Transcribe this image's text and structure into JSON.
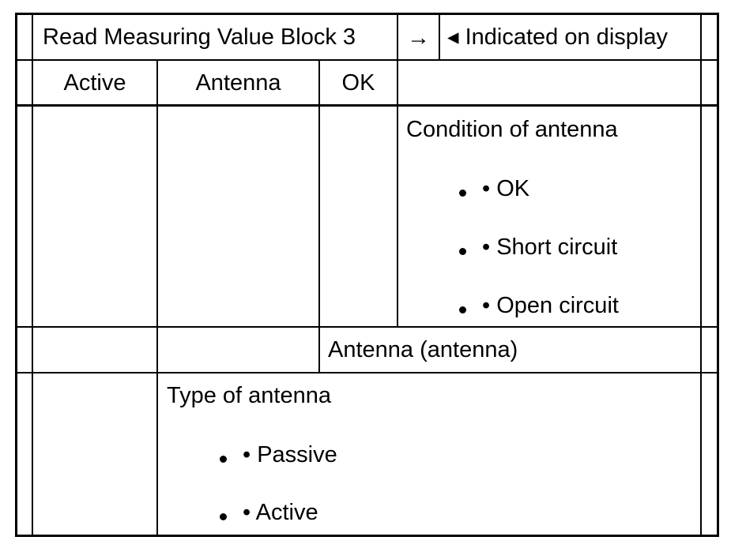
{
  "table": {
    "header": {
      "title": "Read Measuring Value Block 3",
      "arrow": "→",
      "indicated": "◂ Indicated on display"
    },
    "row1": {
      "col1": "Active",
      "col2": "Antenna",
      "col3": "OK"
    },
    "condition": {
      "heading": "Condition of antenna",
      "items": [
        "• OK",
        "• Short circuit",
        "• Open circuit"
      ]
    },
    "antenna_row": {
      "label": "Antenna (antenna)"
    },
    "type": {
      "heading": "Type of antenna",
      "items": [
        "• Passive",
        "• Active"
      ]
    }
  }
}
